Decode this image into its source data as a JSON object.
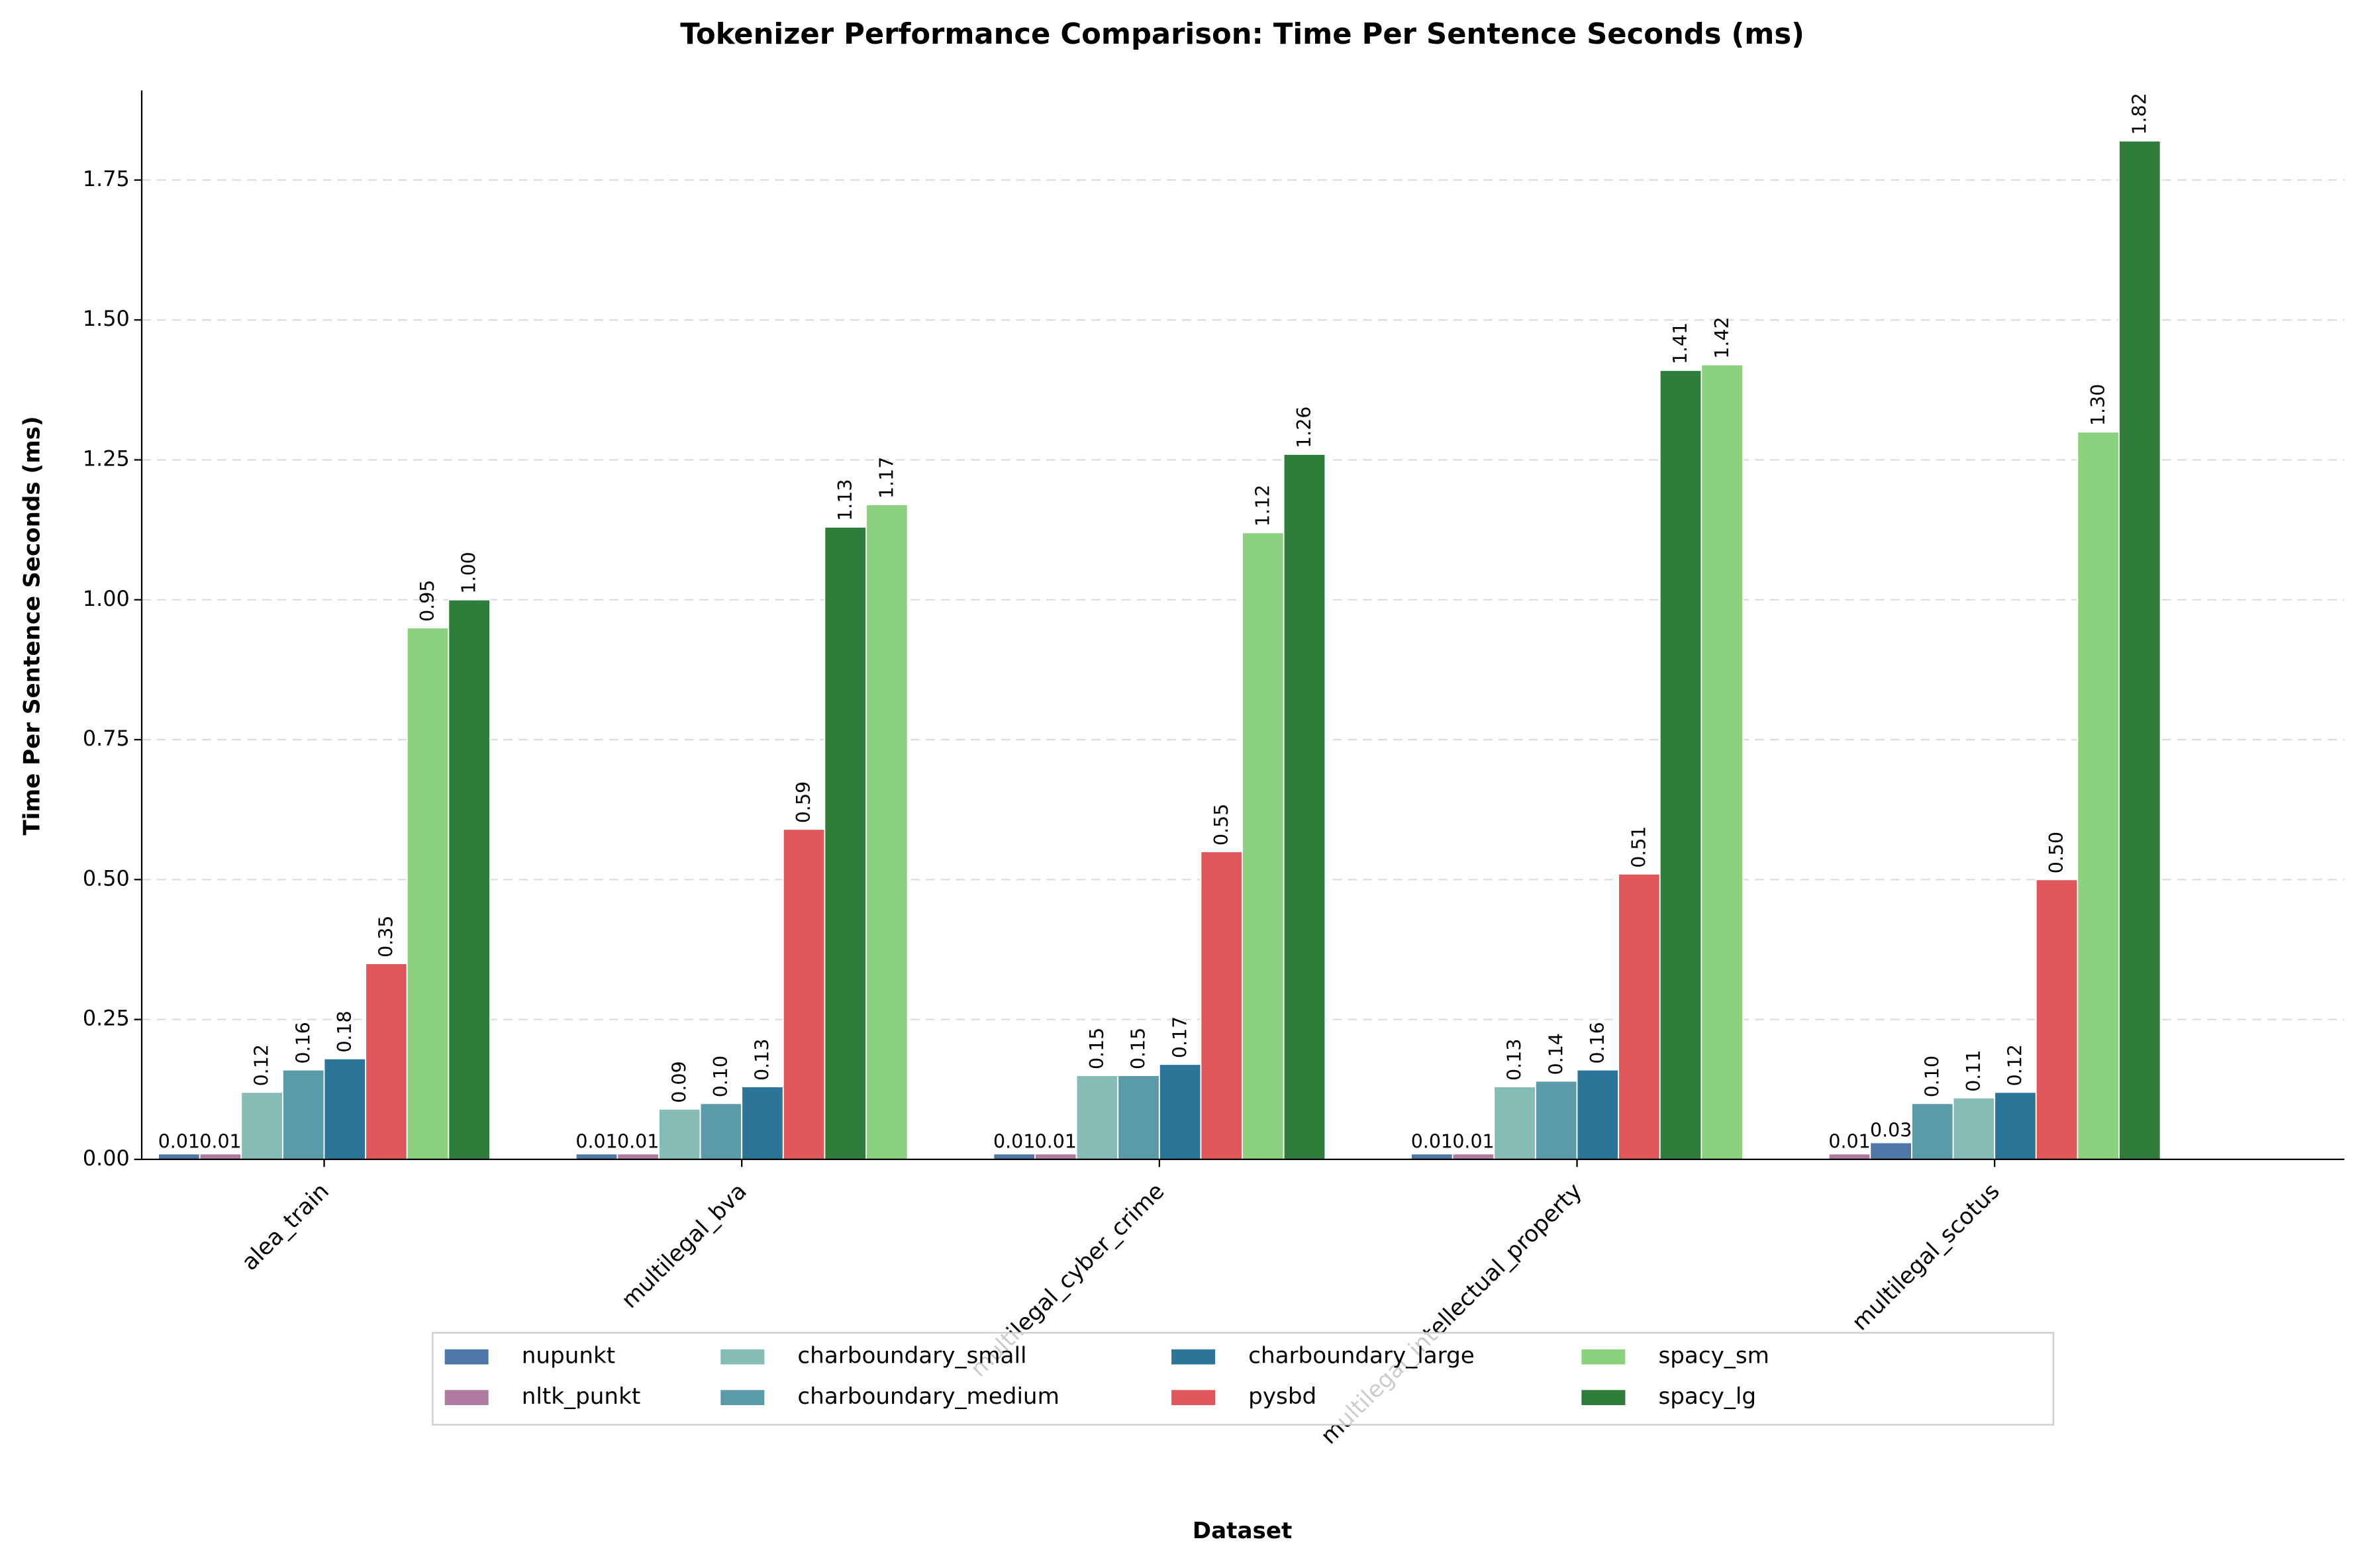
{
  "chart_data": {
    "type": "bar",
    "title": "Tokenizer Performance Comparison: Time Per Sentence Seconds (ms)",
    "x_label": "Dataset",
    "y_label": "Time Per Sentence Seconds (ms)",
    "categories": [
      "alea_train",
      "multilegal_bva",
      "multilegal_cyber_crime",
      "multilegal_intellectual_property",
      "multilegal_scotus"
    ],
    "series": [
      {
        "name": "nupunkt",
        "color": "#4e76a6",
        "values": [
          0.01,
          0.01,
          0.01,
          0.01,
          0.03
        ],
        "value_labels": [
          "0.01",
          "0.01",
          "0.01",
          "0.01",
          "0.03"
        ]
      },
      {
        "name": "nltk_punkt",
        "color": "#b07aa1",
        "values": [
          0.01,
          0.01,
          0.01,
          0.01,
          0.01
        ],
        "value_labels": [
          "0.01",
          "0.01",
          "0.01",
          "0.01",
          "0.01"
        ]
      },
      {
        "name": "charboundary_small",
        "color": "#86bcb6",
        "values": [
          0.12,
          0.09,
          0.15,
          0.13,
          0.11
        ],
        "value_labels": [
          "0.12",
          "0.09",
          "0.15",
          "0.13",
          "0.11"
        ]
      },
      {
        "name": "charboundary_medium",
        "color": "#5b9aa8",
        "values": [
          0.16,
          0.1,
          0.15,
          0.14,
          0.1
        ],
        "value_labels": [
          "0.16",
          "0.10",
          "0.15",
          "0.14",
          "0.10"
        ]
      },
      {
        "name": "charboundary_large",
        "color": "#2a7598",
        "values": [
          0.18,
          0.13,
          0.17,
          0.16,
          0.12
        ],
        "value_labels": [
          "0.18",
          "0.13",
          "0.17",
          "0.16",
          "0.12"
        ]
      },
      {
        "name": "pysbd",
        "color": "#e15759",
        "values": [
          0.35,
          0.59,
          0.55,
          0.51,
          0.5
        ],
        "value_labels": [
          "0.35",
          "0.59",
          "0.55",
          "0.51",
          "0.50"
        ]
      },
      {
        "name": "spacy_sm",
        "color": "#8cd17d",
        "values": [
          0.95,
          1.17,
          1.12,
          1.42,
          1.3
        ],
        "value_labels": [
          "0.95",
          "1.17",
          "1.12",
          "1.42",
          "1.30"
        ]
      },
      {
        "name": "spacy_lg",
        "color": "#2f7d3b",
        "values": [
          1.0,
          1.13,
          1.26,
          1.41,
          1.82
        ],
        "value_labels": [
          "1.00",
          "1.13",
          "1.26",
          "1.41",
          "1.82"
        ]
      }
    ],
    "ylim": [
      0,
      1.91
    ],
    "yticks": [
      {
        "value": 0,
        "label": "0.00"
      },
      {
        "value": 0.25,
        "label": "0.25"
      },
      {
        "value": 0.5,
        "label": "0.50"
      },
      {
        "value": 0.75,
        "label": "0.75"
      },
      {
        "value": 1,
        "label": "1.00"
      },
      {
        "value": 1.25,
        "label": "1.25"
      },
      {
        "value": 1.5,
        "label": "1.50"
      },
      {
        "value": 1.75,
        "label": "1.75"
      }
    ],
    "grid": true,
    "legend_position": "bottom"
  }
}
